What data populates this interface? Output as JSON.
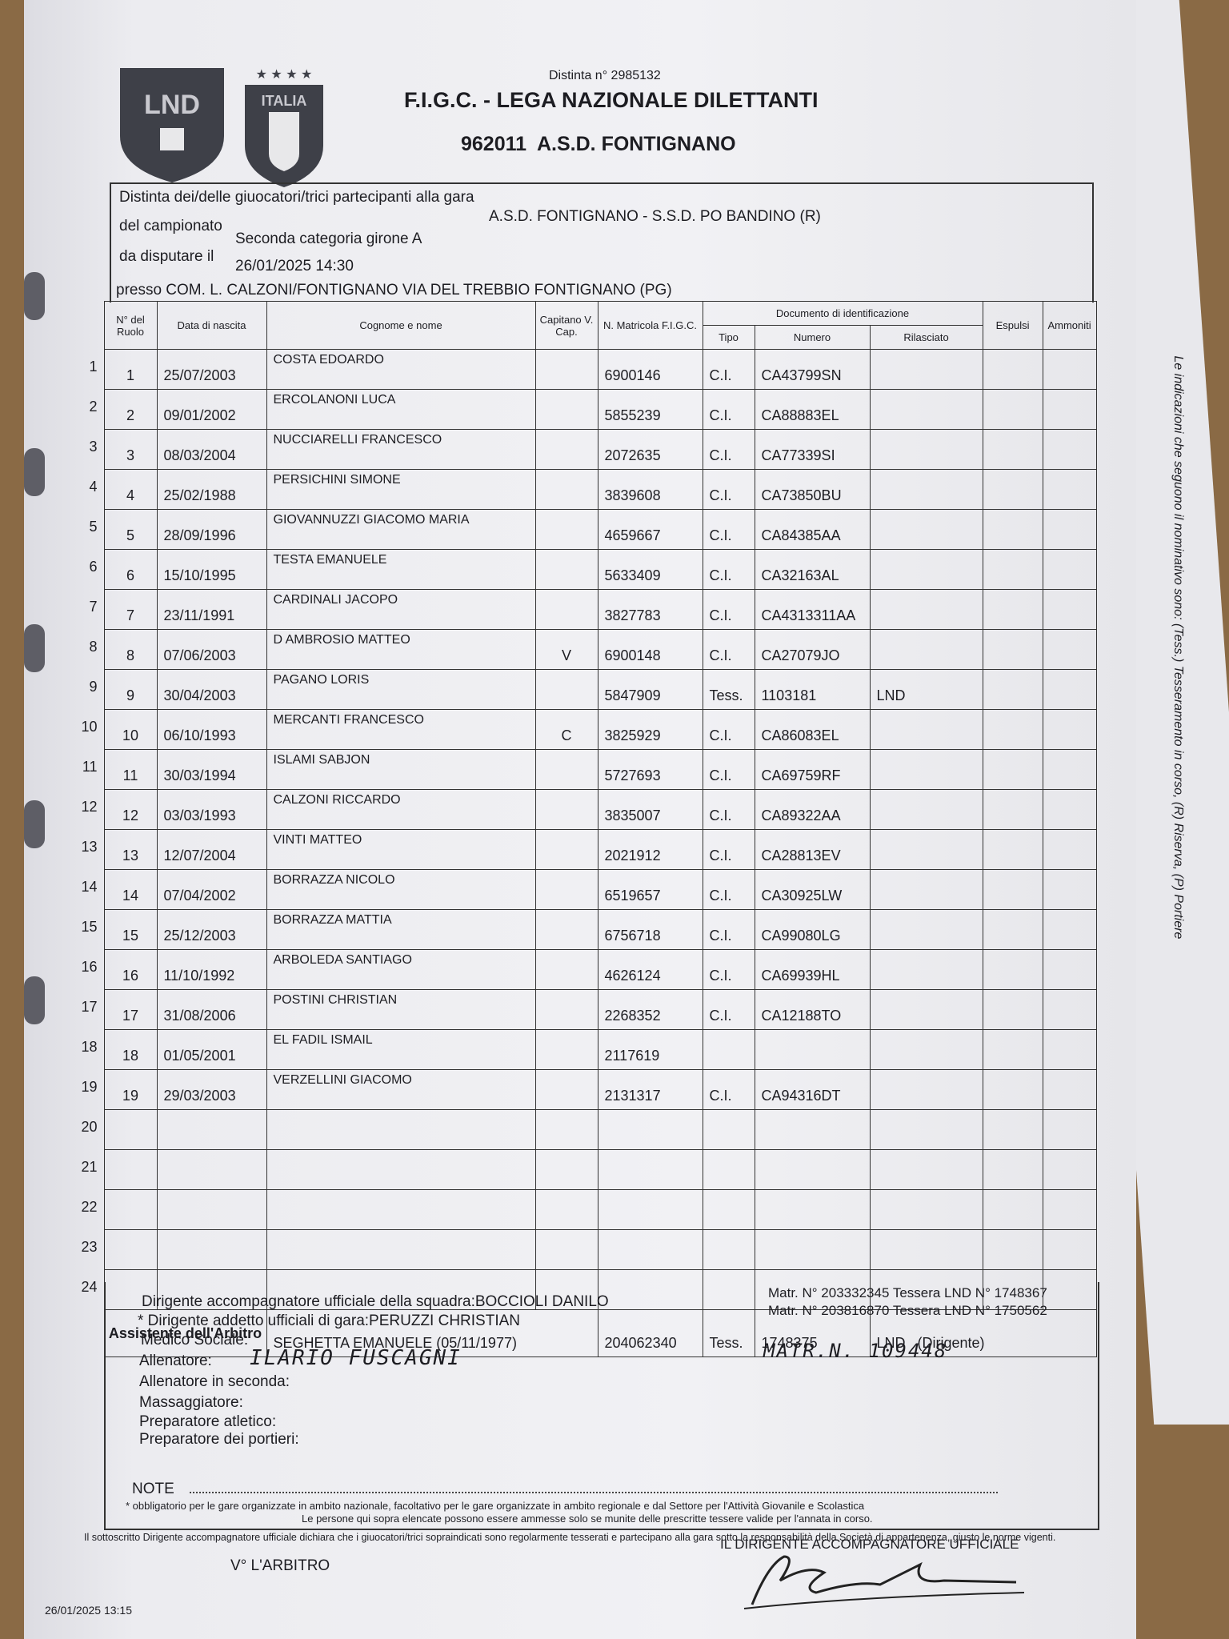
{
  "header": {
    "logo_lnd": "LND",
    "logo_italia": "ITALIA",
    "distinta": "Distinta n° 2985132",
    "federation": "F.I.G.C. - LEGA NAZIONALE DILETTANTI",
    "club": "962011  A.S.D. FONTIGNANO"
  },
  "info": {
    "match_label": "Distinta dei/delle giuocatori/trici partecipanti alla gara",
    "match": "A.S.D. FONTIGNANO - S.S.D. PO BANDINO (R)",
    "championship_label": "del campionato",
    "championship": "Seconda categoria girone A",
    "date_label": "da disputare il",
    "date": "26/01/2025 14:30",
    "venue": "presso COM. L. CALZONI/FONTIGNANO VIA DEL TREBBIO FONTIGNANO (PG)"
  },
  "table": {
    "headers": {
      "ruolo": "N° del Ruolo",
      "nascita": "Data di nascita",
      "nome": "Cognome e nome",
      "capitano": "Capitano V. Cap.",
      "matricola": "N. Matricola F.I.G.C.",
      "documento": "Documento di identificazione",
      "tipo": "Tipo",
      "numero": "Numero",
      "rilasciato": "Rilasciato",
      "espulsi": "Espulsi",
      "ammoniti": "Ammoniti"
    },
    "rows": [
      {
        "n": "1",
        "ruolo": "1",
        "nascita": "25/07/2003",
        "nome": "COSTA EDOARDO",
        "matricola": "6900146",
        "tipo": "C.I.",
        "numero": "CA43799SN"
      },
      {
        "n": "2",
        "ruolo": "2",
        "nascita": "09/01/2002",
        "nome": "ERCOLANONI LUCA",
        "matricola": "5855239",
        "tipo": "C.I.",
        "numero": "CA88883EL"
      },
      {
        "n": "3",
        "ruolo": "3",
        "nascita": "08/03/2004",
        "nome": "NUCCIARELLI FRANCESCO",
        "matricola": "2072635",
        "tipo": "C.I.",
        "numero": "CA77339SI"
      },
      {
        "n": "4",
        "ruolo": "4",
        "nascita": "25/02/1988",
        "nome": "PERSICHINI SIMONE",
        "matricola": "3839608",
        "tipo": "C.I.",
        "numero": "CA73850BU"
      },
      {
        "n": "5",
        "ruolo": "5",
        "nascita": "28/09/1996",
        "nome": "GIOVANNUZZI GIACOMO MARIA",
        "matricola": "4659667",
        "tipo": "C.I.",
        "numero": "CA84385AA"
      },
      {
        "n": "6",
        "ruolo": "6",
        "nascita": "15/10/1995",
        "nome": "TESTA EMANUELE",
        "matricola": "5633409",
        "tipo": "C.I.",
        "numero": "CA32163AL"
      },
      {
        "n": "7",
        "ruolo": "7",
        "nascita": "23/11/1991",
        "nome": "CARDINALI JACOPO",
        "matricola": "3827783",
        "tipo": "C.I.",
        "numero": "CA4313311AA"
      },
      {
        "n": "8",
        "ruolo": "8",
        "nascita": "07/06/2003",
        "nome": "D AMBROSIO MATTEO",
        "capitano": "V",
        "matricola": "6900148",
        "tipo": "C.I.",
        "numero": "CA27079JO"
      },
      {
        "n": "9",
        "ruolo": "9",
        "nascita": "30/04/2003",
        "nome": "PAGANO LORIS",
        "matricola": "5847909",
        "tipo": "Tess.",
        "numero": "1103181",
        "rilasciato": "LND"
      },
      {
        "n": "10",
        "ruolo": "10",
        "nascita": "06/10/1993",
        "nome": "MERCANTI FRANCESCO",
        "capitano": "C",
        "matricola": "3825929",
        "tipo": "C.I.",
        "numero": "CA86083EL"
      },
      {
        "n": "11",
        "ruolo": "11",
        "nascita": "30/03/1994",
        "nome": "ISLAMI SABJON",
        "matricola": "5727693",
        "tipo": "C.I.",
        "numero": "CA69759RF"
      },
      {
        "n": "12",
        "ruolo": "12",
        "nascita": "03/03/1993",
        "nome": "CALZONI RICCARDO",
        "matricola": "3835007",
        "tipo": "C.I.",
        "numero": "CA89322AA"
      },
      {
        "n": "13",
        "ruolo": "13",
        "nascita": "12/07/2004",
        "nome": "VINTI MATTEO",
        "matricola": "2021912",
        "tipo": "C.I.",
        "numero": "CA28813EV"
      },
      {
        "n": "14",
        "ruolo": "14",
        "nascita": "07/04/2002",
        "nome": "BORRAZZA NICOLO",
        "matricola": "6519657",
        "tipo": "C.I.",
        "numero": "CA30925LW"
      },
      {
        "n": "15",
        "ruolo": "15",
        "nascita": "25/12/2003",
        "nome": "BORRAZZA MATTIA",
        "matricola": "6756718",
        "tipo": "C.I.",
        "numero": "CA99080LG"
      },
      {
        "n": "16",
        "ruolo": "16",
        "nascita": "11/10/1992",
        "nome": "ARBOLEDA SANTIAGO",
        "matricola": "4626124",
        "tipo": "C.I.",
        "numero": "CA69939HL"
      },
      {
        "n": "17",
        "ruolo": "17",
        "nascita": "31/08/2006",
        "nome": "POSTINI CHRISTIAN",
        "matricola": "2268352",
        "tipo": "C.I.",
        "numero": "CA12188TO"
      },
      {
        "n": "18",
        "ruolo": "18",
        "nascita": "01/05/2001",
        "nome": "EL FADIL ISMAIL",
        "matricola": "2117619"
      },
      {
        "n": "19",
        "ruolo": "19",
        "nascita": "29/03/2003",
        "nome": "VERZELLINI GIACOMO",
        "matricola": "2131317",
        "tipo": "C.I.",
        "numero": "CA94316DT"
      },
      {
        "n": "20"
      },
      {
        "n": "21"
      },
      {
        "n": "22"
      },
      {
        "n": "23"
      },
      {
        "n": "24"
      }
    ],
    "assistant": {
      "label": "Assistente dell'Arbitro",
      "name": "SEGHETTA EMANUELE (05/11/1977)",
      "matricola": "204062340",
      "tipo": "Tess.",
      "numero": "1748375",
      "rilasciato": "LND   (Dirigente)"
    }
  },
  "side_note": "Le indicazioni che seguono il nominativo sono: (Tess.) Tesseramento in corso, (R) Riserva, (P) Portiere",
  "staff": {
    "dirigente_label": "Dirigente accompagnatore ufficiale della squadra:",
    "dirigente": "BOCCIOLI DANILO",
    "dirigente_matr": "Matr. N° 203332345 Tessera LND N° 1748367",
    "addetto_label": "* Dirigente addetto ufficiali di gara:",
    "addetto": "PERUZZI CHRISTIAN",
    "addetto_matr": "Matr. N° 203816870 Tessera LND N° 1750562",
    "medico_label": "Medico Sociale:",
    "allenatore_label": "Allenatore:",
    "allenatore": "ILARIO FUSCAGNI",
    "allenatore_matr": "MATR.N. 109448",
    "seconda_label": "Allenatore in seconda:",
    "massaggiatore_label": "Massaggiatore:",
    "atletico_label": "Preparatore atletico:",
    "portieri_label": "Preparatore dei portieri:"
  },
  "footer": {
    "note_label": "NOTE",
    "obbligatorio": "* obbligatorio per le gare organizzate in ambito nazionale, facoltativo per le gare organizzate in ambito regionale e dal Settore per l'Attività Giovanile e Scolastica",
    "tessere": "Le persone qui sopra elencate possono essere ammesse solo se munite delle prescritte tessere valide per l'annata in corso.",
    "dichiarazione": "Il sottoscritto Dirigente accompagnatore ufficiale dichiara che i giuocatori/trici sopraindicati sono regolarmente tesserati e partecipano alla gara sotto la responsabilità della Società di appartenenza, giusto le norme vigenti.",
    "arbitro": "V° L'ARBITRO",
    "dirigente_firma": "IL DIRIGENTE ACCOMPAGNATORE UFFICIALE",
    "timestamp": "26/01/2025 13:15"
  }
}
